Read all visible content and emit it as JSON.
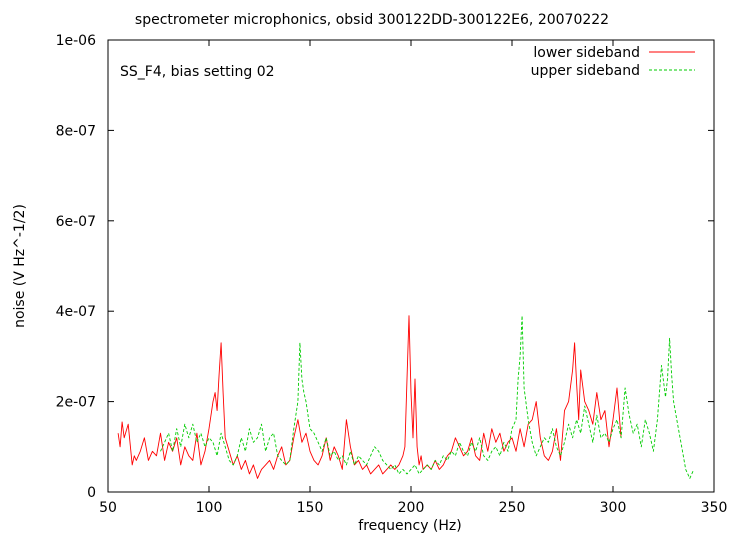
{
  "chart_data": {
    "type": "line",
    "title": "spectrometer microphonics, obsid 300122DD-300122E6, 20070222",
    "annotation": "SS_F4, bias setting 02",
    "xlabel": "frequency (Hz)",
    "ylabel": "noise (V Hz^-1/2)",
    "xlim": [
      50,
      350
    ],
    "ylim": [
      0,
      1e-06
    ],
    "x_ticks": [
      50,
      100,
      150,
      200,
      250,
      300,
      350
    ],
    "x_tick_labels": [
      "50",
      "100",
      "150",
      "200",
      "250",
      "300",
      "350"
    ],
    "y_ticks": [
      0,
      2e-07,
      4e-07,
      6e-07,
      8e-07,
      1e-06
    ],
    "y_tick_labels": [
      "0",
      "2e-07",
      "4e-07",
      "6e-07",
      "8e-07",
      "1e-06"
    ],
    "grid": false,
    "legend_position": "top-right",
    "series": [
      {
        "name": "lower sideband",
        "color": "#ff0000",
        "dash": "solid",
        "x": [
          55,
          56,
          57,
          58,
          60,
          62,
          63,
          64,
          66,
          68,
          70,
          72,
          74,
          76,
          78,
          80,
          82,
          84,
          86,
          88,
          90,
          92,
          94,
          96,
          98,
          100,
          102,
          103,
          104,
          105,
          106,
          107,
          108,
          110,
          112,
          114,
          116,
          118,
          120,
          122,
          124,
          126,
          128,
          130,
          132,
          134,
          136,
          138,
          140,
          142,
          144,
          146,
          148,
          150,
          152,
          154,
          156,
          158,
          160,
          162,
          164,
          166,
          168,
          170,
          172,
          174,
          176,
          178,
          180,
          182,
          184,
          186,
          188,
          190,
          192,
          194,
          196,
          197,
          198,
          199,
          200,
          201,
          202,
          203,
          204,
          205,
          206,
          208,
          210,
          212,
          214,
          216,
          218,
          220,
          222,
          224,
          226,
          228,
          230,
          232,
          234,
          236,
          238,
          240,
          242,
          244,
          246,
          248,
          250,
          252,
          254,
          256,
          258,
          260,
          262,
          264,
          266,
          268,
          270,
          272,
          274,
          276,
          278,
          280,
          281,
          282,
          283,
          284,
          286,
          288,
          290,
          292,
          294,
          296,
          298,
          300,
          302,
          304
        ],
        "y": [
          1.3e-07,
          1e-07,
          1.55e-07,
          1.2e-07,
          1.5e-07,
          6e-08,
          8e-08,
          7e-08,
          9e-08,
          1.2e-07,
          7e-08,
          9e-08,
          8e-08,
          1.3e-07,
          7e-08,
          1.1e-07,
          9e-08,
          1.2e-07,
          6e-08,
          1e-07,
          8e-08,
          7e-08,
          1.3e-07,
          6e-08,
          9e-08,
          1.4e-07,
          2e-07,
          2.2e-07,
          1.8e-07,
          2.6e-07,
          3.3e-07,
          2.2e-07,
          1.2e-07,
          9e-08,
          6e-08,
          8e-08,
          5e-08,
          7e-08,
          4e-08,
          6e-08,
          3e-08,
          5e-08,
          6e-08,
          7e-08,
          5e-08,
          8e-08,
          1e-07,
          6e-08,
          7e-08,
          1.2e-07,
          1.6e-07,
          1.1e-07,
          1.3e-07,
          9e-08,
          7e-08,
          6e-08,
          8e-08,
          1.2e-07,
          7e-08,
          1e-07,
          8e-08,
          5e-08,
          1.6e-07,
          1e-07,
          6e-08,
          7e-08,
          5e-08,
          6e-08,
          4e-08,
          5e-08,
          6e-08,
          4e-08,
          5e-08,
          6e-08,
          5e-08,
          6e-08,
          8e-08,
          1e-07,
          2.5e-07,
          3.9e-07,
          2.2e-07,
          1.2e-07,
          2.5e-07,
          1e-07,
          6e-08,
          8e-08,
          5e-08,
          6e-08,
          5e-08,
          7e-08,
          5e-08,
          6e-08,
          8e-08,
          9e-08,
          1.2e-07,
          1e-07,
          8e-08,
          9e-08,
          1.2e-07,
          8e-08,
          7e-08,
          1.3e-07,
          9e-08,
          1.4e-07,
          1.1e-07,
          1.3e-07,
          9e-08,
          1.1e-07,
          1.2e-07,
          9e-08,
          1.4e-07,
          1e-07,
          1.5e-07,
          1.6e-07,
          2e-07,
          1.2e-07,
          8e-08,
          7e-08,
          9e-08,
          1.4e-07,
          7e-08,
          1.8e-07,
          2e-07,
          2.7e-07,
          3.3e-07,
          2.4e-07,
          1.6e-07,
          2.7e-07,
          2e-07,
          1.8e-07,
          1.5e-07,
          2.2e-07,
          1.6e-07,
          1.8e-07,
          1e-07,
          1.6e-07,
          2.3e-07,
          1.2e-07
        ]
      },
      {
        "name": "upper sideband",
        "color": "#00cc00",
        "dash": "dashed",
        "x": [
          76,
          78,
          80,
          82,
          84,
          86,
          88,
          90,
          92,
          94,
          96,
          98,
          100,
          102,
          104,
          106,
          108,
          110,
          112,
          114,
          116,
          118,
          120,
          122,
          124,
          126,
          128,
          130,
          132,
          134,
          136,
          138,
          140,
          142,
          144,
          145,
          146,
          147,
          148,
          150,
          152,
          154,
          156,
          158,
          160,
          162,
          164,
          166,
          168,
          170,
          172,
          174,
          176,
          178,
          180,
          182,
          184,
          186,
          188,
          190,
          192,
          194,
          196,
          198,
          200,
          202,
          204,
          206,
          208,
          210,
          212,
          214,
          216,
          218,
          220,
          222,
          224,
          226,
          228,
          230,
          232,
          234,
          236,
          238,
          240,
          242,
          244,
          246,
          248,
          250,
          252,
          253,
          254,
          255,
          256,
          258,
          260,
          262,
          264,
          266,
          268,
          270,
          272,
          274,
          276,
          278,
          280,
          282,
          284,
          286,
          288,
          290,
          292,
          294,
          296,
          298,
          300,
          302,
          304,
          306,
          308,
          310,
          312,
          314,
          316,
          318,
          320,
          322,
          324,
          326,
          327,
          328,
          329,
          330,
          332,
          334,
          336,
          338,
          340
        ],
        "y": [
          9e-08,
          1.1e-07,
          1.3e-07,
          9e-08,
          1.4e-07,
          1e-07,
          1.5e-07,
          1.2e-07,
          1.5e-07,
          1.1e-07,
          1.3e-07,
          1e-07,
          1.2e-07,
          1.1e-07,
          8e-08,
          1.3e-07,
          1e-07,
          7e-08,
          6e-08,
          8e-08,
          1.2e-07,
          9e-08,
          1.4e-07,
          1.1e-07,
          1.2e-07,
          1.5e-07,
          9e-08,
          1.2e-07,
          1.3e-07,
          8e-08,
          7e-08,
          6e-08,
          7e-08,
          1.4e-07,
          2e-07,
          3.3e-07,
          2.5e-07,
          2.2e-07,
          2e-07,
          1.4e-07,
          1.3e-07,
          1.1e-07,
          9e-08,
          1.2e-07,
          8e-08,
          9e-08,
          7e-08,
          8e-08,
          6e-08,
          9e-08,
          6e-08,
          8e-08,
          7e-08,
          6e-08,
          8e-08,
          1e-07,
          9e-08,
          7e-08,
          6e-08,
          5e-08,
          6e-08,
          4e-08,
          5e-08,
          4e-08,
          5e-08,
          6e-08,
          4e-08,
          5e-08,
          6e-08,
          5e-08,
          7e-08,
          6e-08,
          8e-08,
          7e-08,
          9e-08,
          8e-08,
          1.1e-07,
          9e-08,
          8e-08,
          1.1e-07,
          9e-08,
          1.2e-07,
          8e-08,
          7e-08,
          9e-08,
          1e-07,
          8e-08,
          1.1e-07,
          9e-08,
          1.4e-07,
          1.6e-07,
          2.5e-07,
          3e-07,
          3.9e-07,
          2.3e-07,
          1.6e-07,
          1.1e-07,
          8e-08,
          1e-07,
          1.2e-07,
          1.1e-07,
          1.4e-07,
          1e-07,
          8e-08,
          1.1e-07,
          1.5e-07,
          1.2e-07,
          1.6e-07,
          1.3e-07,
          1.9e-07,
          1.5e-07,
          1.1e-07,
          1.7e-07,
          1.2e-07,
          1.3e-07,
          1.1e-07,
          1.4e-07,
          1.6e-07,
          1.2e-07,
          2.3e-07,
          1.7e-07,
          1.3e-07,
          1.5e-07,
          1e-07,
          1.6e-07,
          1.3e-07,
          9e-08,
          1.6e-07,
          2.8e-07,
          2.1e-07,
          2.5e-07,
          3.4e-07,
          2.6e-07,
          2e-07,
          1.5e-07,
          1e-07,
          5e-08,
          3e-08,
          5e-08
        ]
      }
    ]
  }
}
